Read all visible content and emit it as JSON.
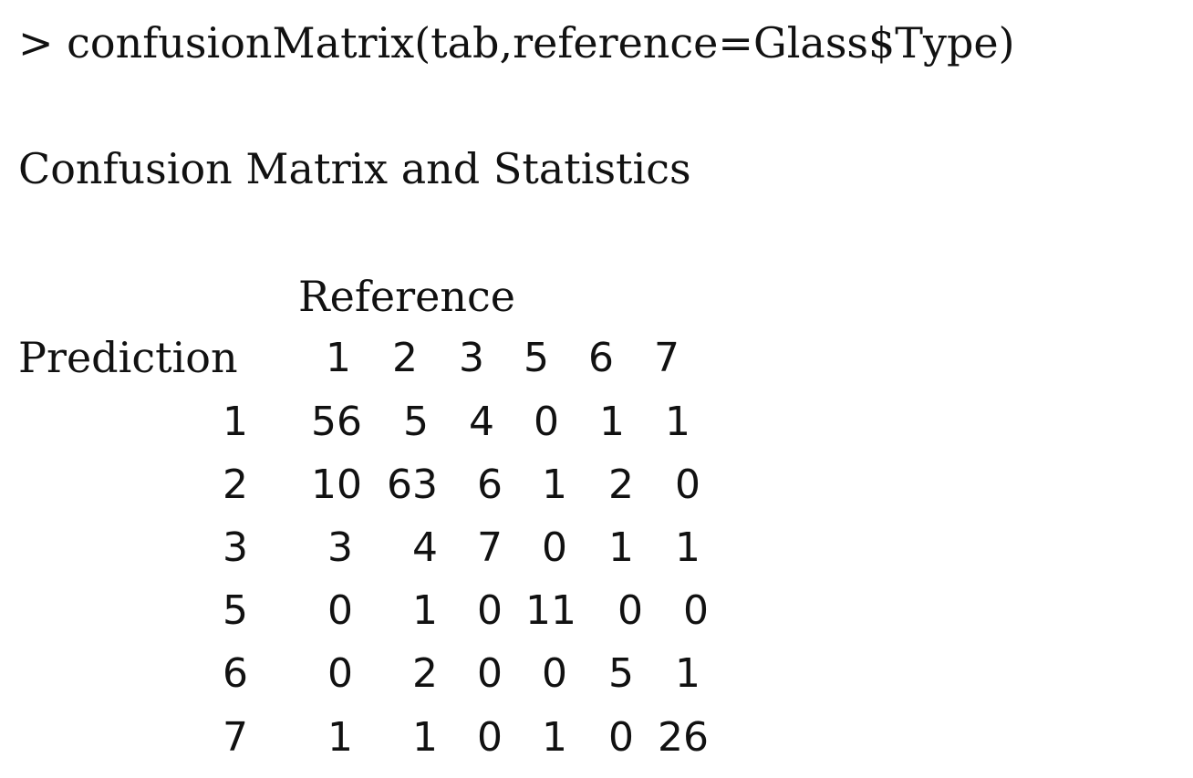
{
  "command": "> confusionMatrix(tab,reference=Glass$Type)",
  "heading": "Confusion Matrix and Statistics",
  "matrix": {
    "reference_label": "Reference",
    "prediction_label": "Prediction",
    "columns": [
      "1",
      "2",
      "3",
      "5",
      "6",
      "7"
    ],
    "rows": [
      {
        "label": "1",
        "values": [
          "56",
          "5",
          "4",
          "0",
          "1",
          "1"
        ]
      },
      {
        "label": "2",
        "values": [
          "10",
          "63",
          "6",
          "1",
          "2",
          "0"
        ]
      },
      {
        "label": "3",
        "values": [
          "3",
          "4",
          "7",
          "0",
          "1",
          "1"
        ]
      },
      {
        "label": "5",
        "values": [
          "0",
          "1",
          "0",
          "11",
          "0",
          "0"
        ]
      },
      {
        "label": "6",
        "values": [
          "0",
          "2",
          "0",
          "0",
          "5",
          "1"
        ]
      },
      {
        "label": "7",
        "values": [
          "1",
          "1",
          "0",
          "1",
          "0",
          "26"
        ]
      }
    ]
  }
}
